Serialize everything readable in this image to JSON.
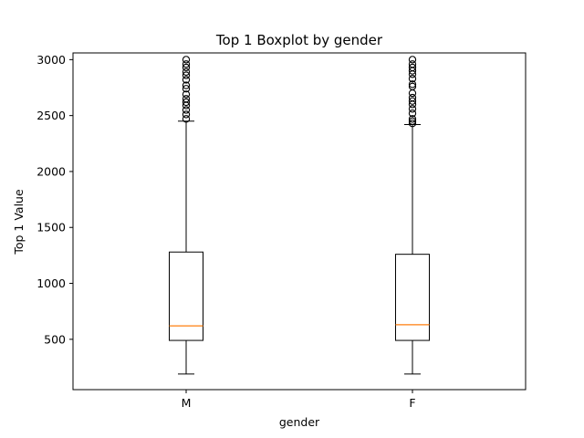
{
  "chart_data": {
    "type": "boxplot",
    "title": "Top 1 Boxplot by gender",
    "xlabel": "gender",
    "ylabel": "Top 1 Value",
    "categories": [
      "M",
      "F"
    ],
    "ylim": [
      50,
      3060
    ],
    "yticks": [
      500,
      1000,
      1500,
      2000,
      2500,
      3000
    ],
    "ytick_labels": [
      "500",
      "1000",
      "1500",
      "2000",
      "2500",
      "3000"
    ],
    "grid": false,
    "boxes": [
      {
        "category": "M",
        "whisker_low": 190,
        "q1": 490,
        "median": 620,
        "q3": 1280,
        "whisker_high": 2450,
        "outliers": [
          2470,
          2510,
          2550,
          2590,
          2620,
          2650,
          2690,
          2740,
          2770,
          2820,
          2860,
          2890,
          2930,
          2960,
          3000
        ]
      },
      {
        "category": "F",
        "whisker_low": 190,
        "q1": 490,
        "median": 630,
        "q3": 1260,
        "whisker_high": 2420,
        "outliers": [
          2430,
          2450,
          2470,
          2520,
          2560,
          2600,
          2630,
          2660,
          2700,
          2760,
          2780,
          2830,
          2870,
          2900,
          2930,
          2960,
          3000
        ]
      }
    ],
    "colors": {
      "box": "#000000",
      "median": "#ff7f0e",
      "outlier": "#000000"
    }
  }
}
